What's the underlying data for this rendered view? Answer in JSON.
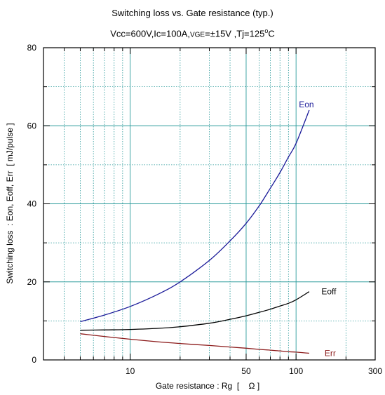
{
  "chart_data": {
    "type": "line",
    "title": "Switching loss  vs.  Gate resistance (typ.)",
    "subtitle": {
      "vcc_ic": "Vcc=600V,Ic=100A,",
      "vge_label": "VGE",
      "vge_value": "=±15V ,Tj=125",
      "degree": "o",
      "unit": "C"
    },
    "xlabel": "Gate resistance : Rg  [    Ω ]",
    "ylabel": "Switching loss  : Eon, Eoff, Err  [ mJ/pulse ]",
    "x_scale": "log",
    "xlim": [
      3,
      300
    ],
    "ylim": [
      0,
      80
    ],
    "x_ticks": [
      {
        "value": 10,
        "label": "10"
      },
      {
        "value": 50,
        "label": "50"
      },
      {
        "value": 100,
        "label": "100"
      },
      {
        "value": 300,
        "label": "300"
      }
    ],
    "y_ticks": [
      {
        "value": 0,
        "label": "0"
      },
      {
        "value": 20,
        "label": "20"
      },
      {
        "value": 40,
        "label": "40"
      },
      {
        "value": 60,
        "label": "60"
      },
      {
        "value": 80,
        "label": "80"
      }
    ],
    "grid": true,
    "series": [
      {
        "name": "Eon",
        "color": "#1a1a99",
        "points": [
          [
            5,
            9.8
          ],
          [
            7,
            11.5
          ],
          [
            10,
            13.7
          ],
          [
            15,
            17
          ],
          [
            20,
            20
          ],
          [
            30,
            25.5
          ],
          [
            40,
            30.5
          ],
          [
            50,
            35
          ],
          [
            60,
            39.5
          ],
          [
            70,
            44
          ],
          [
            80,
            48
          ],
          [
            90,
            52
          ],
          [
            100,
            55.5
          ],
          [
            120,
            64
          ]
        ]
      },
      {
        "name": "Eoff",
        "color": "#000000",
        "points": [
          [
            5,
            7.6
          ],
          [
            7,
            7.7
          ],
          [
            10,
            7.8
          ],
          [
            15,
            8.1
          ],
          [
            20,
            8.5
          ],
          [
            30,
            9.4
          ],
          [
            40,
            10.4
          ],
          [
            50,
            11.3
          ],
          [
            60,
            12.2
          ],
          [
            70,
            13
          ],
          [
            80,
            13.8
          ],
          [
            90,
            14.5
          ],
          [
            100,
            15.4
          ],
          [
            120,
            17.5
          ]
        ]
      },
      {
        "name": "Err",
        "color": "#8b1a1a",
        "points": [
          [
            5,
            6.7
          ],
          [
            7,
            6.0
          ],
          [
            10,
            5.3
          ],
          [
            15,
            4.6
          ],
          [
            20,
            4.2
          ],
          [
            30,
            3.7
          ],
          [
            40,
            3.3
          ],
          [
            50,
            3.0
          ],
          [
            60,
            2.7
          ],
          [
            70,
            2.5
          ],
          [
            80,
            2.3
          ],
          [
            90,
            2.1
          ],
          [
            100,
            2.0
          ],
          [
            120,
            1.7
          ]
        ]
      }
    ]
  }
}
